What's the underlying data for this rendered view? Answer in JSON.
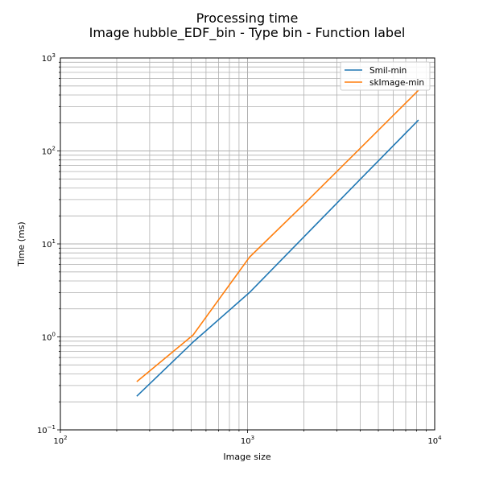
{
  "chart_data": {
    "type": "line",
    "title": "Processing time",
    "subtitle": "Image hubble_EDF_bin - Type bin - Function label",
    "xlabel": "Image size",
    "ylabel": "Time (ms)",
    "xscale": "log",
    "yscale": "log",
    "xlim": [
      100,
      10000
    ],
    "ylim": [
      0.1,
      1000
    ],
    "grid": true,
    "legend_position": "top-right",
    "x_major_ticks": [
      {
        "value": 100,
        "base": "10",
        "exp": "2"
      },
      {
        "value": 1000,
        "base": "10",
        "exp": "3"
      },
      {
        "value": 10000,
        "base": "10",
        "exp": "4"
      }
    ],
    "y_major_ticks": [
      {
        "value": 0.1,
        "base": "10",
        "exp": "−1"
      },
      {
        "value": 1,
        "base": "10",
        "exp": "0"
      },
      {
        "value": 10,
        "base": "10",
        "exp": "1"
      },
      {
        "value": 100,
        "base": "10",
        "exp": "2"
      },
      {
        "value": 1000,
        "base": "10",
        "exp": "3"
      }
    ],
    "x": [
      256,
      512,
      1024,
      2048,
      4096,
      8192
    ],
    "series": [
      {
        "name": "Smil-min",
        "color": "#1f77b4",
        "values": [
          0.23,
          0.88,
          3.0,
          12.5,
          52,
          215
        ]
      },
      {
        "name": "skImage-min",
        "color": "#ff7f0e",
        "values": [
          0.33,
          1.05,
          7.2,
          28,
          112,
          450
        ]
      }
    ]
  }
}
